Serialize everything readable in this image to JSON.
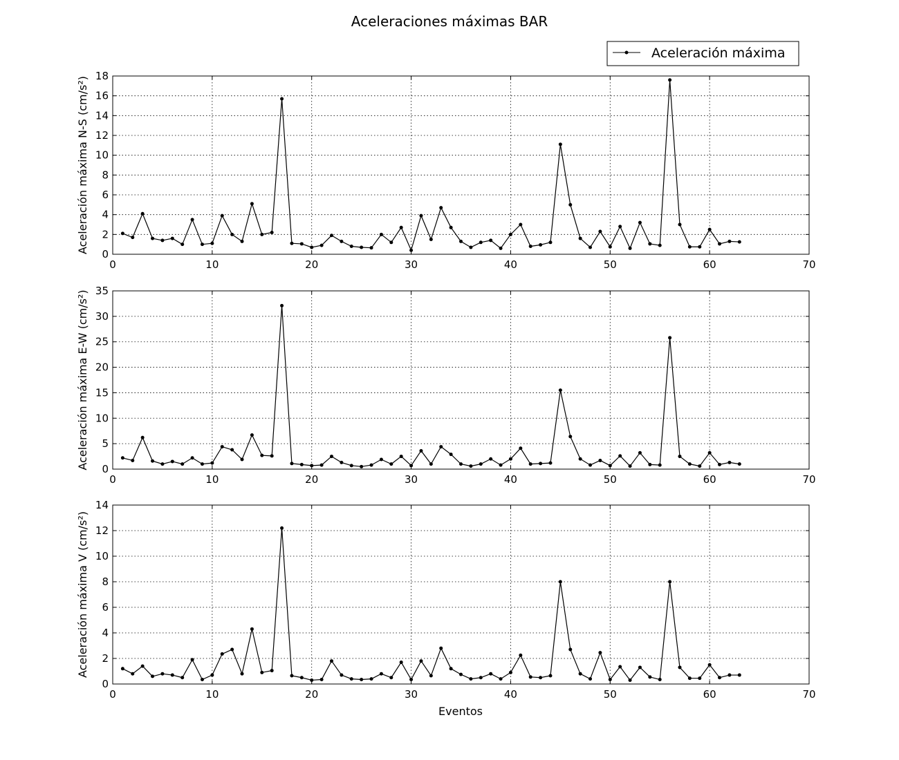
{
  "chart_data": {
    "type": "line",
    "title": "Aceleraciones máximas BAR",
    "xlabel": "Eventos",
    "legend": {
      "label": "Aceleración máxima",
      "placement": "top-right"
    },
    "grid": true,
    "line_color": "#000000",
    "x": [
      1,
      2,
      3,
      4,
      5,
      6,
      7,
      8,
      9,
      10,
      11,
      12,
      13,
      14,
      15,
      16,
      17,
      18,
      19,
      20,
      21,
      22,
      23,
      24,
      25,
      26,
      27,
      28,
      29,
      30,
      31,
      32,
      33,
      34,
      35,
      36,
      37,
      38,
      39,
      40,
      41,
      42,
      43,
      44,
      45,
      46,
      47,
      48,
      49,
      50,
      51,
      52,
      53,
      54,
      55,
      56,
      57,
      58,
      59,
      60,
      61,
      62,
      63
    ],
    "xlim": [
      0,
      70
    ],
    "xticks": [
      0,
      10,
      20,
      30,
      40,
      50,
      60,
      70
    ],
    "panels": [
      {
        "ylabel": "Aceleración máxima N-S (cm/s²)",
        "ylim": [
          0,
          18
        ],
        "yticks": [
          0,
          2,
          4,
          6,
          8,
          10,
          12,
          14,
          16,
          18
        ],
        "values": [
          2.1,
          1.7,
          4.1,
          1.6,
          1.4,
          1.6,
          1.0,
          3.5,
          1.0,
          1.1,
          3.9,
          2.0,
          1.3,
          5.1,
          2.0,
          2.2,
          15.7,
          1.1,
          1.05,
          0.7,
          0.9,
          1.9,
          1.3,
          0.8,
          0.7,
          0.65,
          2.0,
          1.2,
          2.7,
          0.4,
          3.9,
          1.5,
          4.7,
          2.7,
          1.3,
          0.7,
          1.2,
          1.4,
          0.6,
          2.0,
          3.0,
          0.8,
          0.95,
          1.2,
          11.1,
          5.0,
          1.6,
          0.7,
          2.3,
          0.75,
          2.8,
          0.6,
          3.2,
          1.05,
          0.9,
          17.6,
          3.0,
          0.75,
          0.75,
          2.5,
          1.05,
          1.3,
          1.25
        ]
      },
      {
        "ylabel": "Aceleración máxima E-W (cm/s²)",
        "ylim": [
          0,
          35
        ],
        "yticks": [
          0,
          5,
          10,
          15,
          20,
          25,
          30,
          35
        ],
        "values": [
          2.2,
          1.7,
          6.2,
          1.6,
          1.0,
          1.5,
          1.0,
          2.2,
          1.0,
          1.2,
          4.4,
          3.8,
          1.9,
          6.7,
          2.7,
          2.6,
          32.1,
          1.1,
          0.9,
          0.7,
          0.8,
          2.5,
          1.3,
          0.7,
          0.5,
          0.8,
          1.9,
          1.0,
          2.5,
          0.7,
          3.6,
          1.0,
          4.4,
          2.9,
          1.0,
          0.6,
          1.0,
          2.0,
          0.8,
          2.0,
          4.1,
          1.0,
          1.1,
          1.2,
          15.5,
          6.4,
          2.0,
          0.8,
          1.7,
          0.7,
          2.6,
          0.6,
          3.2,
          0.9,
          0.8,
          25.8,
          2.5,
          1.0,
          0.6,
          3.2,
          0.9,
          1.3,
          1.0
        ]
      },
      {
        "ylabel": "Aceleración máxima V (cm/s²)",
        "ylim": [
          0,
          14
        ],
        "yticks": [
          0,
          2,
          4,
          6,
          8,
          10,
          12,
          14
        ],
        "values": [
          1.2,
          0.8,
          1.4,
          0.6,
          0.8,
          0.7,
          0.5,
          1.9,
          0.35,
          0.7,
          2.35,
          2.7,
          0.8,
          4.3,
          0.9,
          1.05,
          12.2,
          0.65,
          0.5,
          0.3,
          0.35,
          1.8,
          0.7,
          0.4,
          0.35,
          0.4,
          0.8,
          0.5,
          1.7,
          0.35,
          1.8,
          0.65,
          2.8,
          1.2,
          0.75,
          0.4,
          0.5,
          0.8,
          0.4,
          0.9,
          2.25,
          0.55,
          0.5,
          0.65,
          8.0,
          2.7,
          0.8,
          0.4,
          2.45,
          0.35,
          1.35,
          0.3,
          1.3,
          0.55,
          0.35,
          8.0,
          1.3,
          0.45,
          0.45,
          1.5,
          0.5,
          0.7,
          0.7
        ]
      }
    ]
  }
}
